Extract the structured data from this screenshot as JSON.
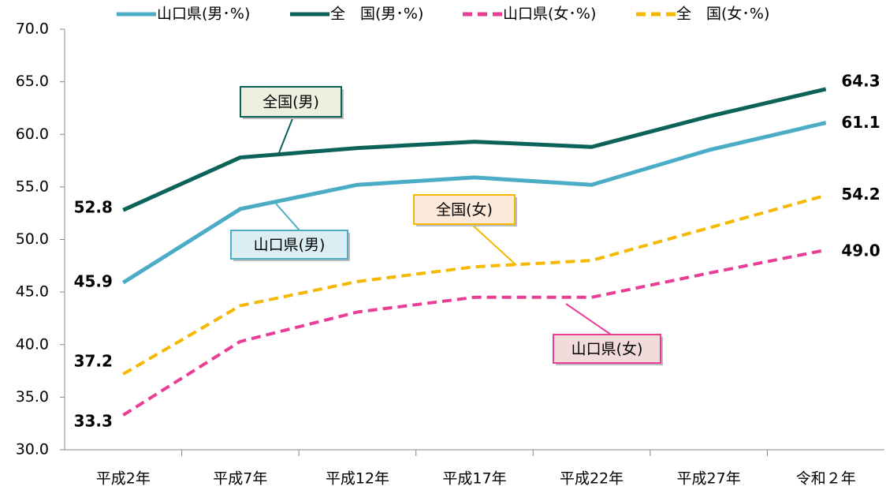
{
  "chart_data": {
    "type": "line",
    "categories": [
      "平成2年",
      "平成7年",
      "平成12年",
      "平成17年",
      "平成22年",
      "平成27年",
      "令和２年"
    ],
    "series": [
      {
        "name": "山口県(男･%)",
        "color": "#4bacc6",
        "dashed": false,
        "values": [
          45.9,
          52.9,
          55.2,
          55.9,
          55.2,
          58.5,
          61.1
        ],
        "value_labels": [
          "45.9",
          null,
          null,
          null,
          null,
          null,
          "61.1"
        ]
      },
      {
        "name": "全　国(男･%)",
        "color": "#0b6259",
        "dashed": false,
        "values": [
          52.8,
          57.8,
          58.7,
          59.3,
          58.8,
          61.7,
          64.3
        ],
        "value_labels": [
          "52.8",
          null,
          null,
          null,
          null,
          null,
          "64.3"
        ]
      },
      {
        "name": "山口県(女･%)",
        "color": "#e83e96",
        "dashed": true,
        "values": [
          33.3,
          40.3,
          43.1,
          44.5,
          44.5,
          46.8,
          49.0
        ],
        "value_labels": [
          "33.3",
          null,
          null,
          null,
          null,
          null,
          "49.0"
        ]
      },
      {
        "name": "全　国(女･%)",
        "color": "#f5b800",
        "dashed": true,
        "values": [
          37.2,
          43.7,
          46.0,
          47.4,
          48.0,
          51.1,
          54.2
        ],
        "value_labels": [
          "37.2",
          null,
          null,
          null,
          null,
          null,
          "54.2"
        ]
      }
    ],
    "annotations": [
      "山口県(男)",
      "全国(男)",
      "山口県(女)",
      "全国(女)"
    ],
    "ylim": [
      30,
      70
    ],
    "yticks": [
      {
        "value": 30,
        "label": "30.0"
      },
      {
        "value": 35,
        "label": "35.0"
      },
      {
        "value": 40,
        "label": "40.0"
      },
      {
        "value": 45,
        "label": "45.0"
      },
      {
        "value": 50,
        "label": "50.0"
      },
      {
        "value": 55,
        "label": "55.0"
      },
      {
        "value": 60,
        "label": "60.0"
      },
      {
        "value": 65,
        "label": "65.0"
      },
      {
        "value": 70,
        "label": "70.0"
      }
    ],
    "legend": "top"
  }
}
